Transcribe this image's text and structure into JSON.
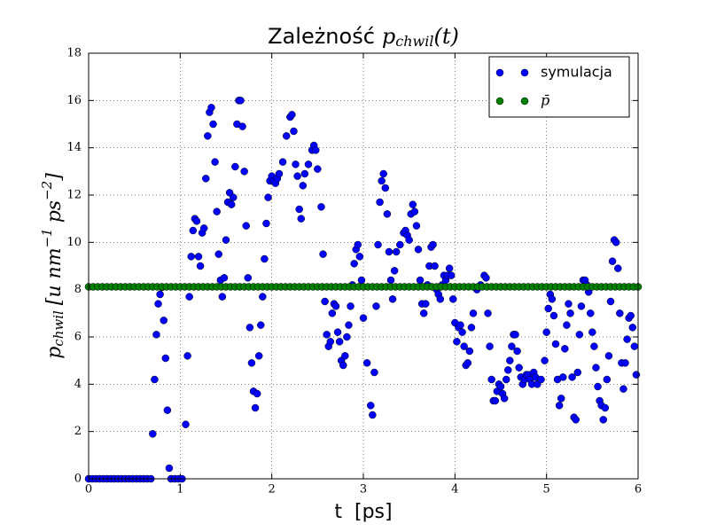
{
  "chart_data": {
    "type": "scatter",
    "title": {
      "text": "Zależność",
      "var": "p",
      "sub": "chwil",
      "arg": "(t)"
    },
    "xlabel": "t  [ps]",
    "ylabel": {
      "var": "p",
      "sub": "chwil",
      "unit1": "[u nm",
      "exp1": "−1",
      "unit2": "ps",
      "exp2": "−2",
      "close": "]"
    },
    "xlim": [
      0,
      6
    ],
    "xticks": [
      0,
      1,
      2,
      3,
      4,
      5,
      6
    ],
    "ylim": [
      0,
      18
    ],
    "yticks": [
      0,
      2,
      4,
      6,
      8,
      10,
      12,
      14,
      16,
      18
    ],
    "grid": true,
    "legend": "upper right",
    "series": [
      {
        "name": "symulacja",
        "color": "#0000ff",
        "x": [
          0,
          0.04,
          0.08,
          0.12,
          0.16,
          0.2,
          0.24,
          0.28,
          0.32,
          0.36,
          0.4,
          0.44,
          0.48,
          0.52,
          0.56,
          0.6,
          0.64,
          0.68,
          0.7,
          0.72,
          0.74,
          0.76,
          0.78,
          0.8,
          0.82,
          0.84,
          0.86,
          0.88,
          0.9,
          0.94,
          0.98,
          1.02,
          1.06,
          1.08,
          1.1,
          1.12,
          1.14,
          1.16,
          1.18,
          1.2,
          1.22,
          1.24,
          1.26,
          1.28,
          1.3,
          1.32,
          1.34,
          1.36,
          1.38,
          1.4,
          1.42,
          1.44,
          1.46,
          1.48,
          1.5,
          1.52,
          1.54,
          1.56,
          1.58,
          1.6,
          1.62,
          1.64,
          1.66,
          1.68,
          1.7,
          1.72,
          1.74,
          1.76,
          1.78,
          1.8,
          1.82,
          1.84,
          1.86,
          1.88,
          1.9,
          1.92,
          1.94,
          1.96,
          1.98,
          2,
          2.02,
          2.04,
          2.06,
          2.08,
          2.12,
          2.16,
          2.2,
          2.22,
          2.24,
          2.26,
          2.28,
          2.3,
          2.32,
          2.34,
          2.36,
          2.4,
          2.44,
          2.46,
          2.48,
          2.5,
          2.54,
          2.56,
          2.58,
          2.6,
          2.62,
          2.64,
          2.66,
          2.68,
          2.7,
          2.72,
          2.74,
          2.76,
          2.78,
          2.8,
          2.82,
          2.84,
          2.86,
          2.88,
          2.9,
          2.92,
          2.94,
          2.96,
          2.98,
          3,
          3.04,
          3.08,
          3.1,
          3.12,
          3.14,
          3.16,
          3.18,
          3.2,
          3.22,
          3.24,
          3.26,
          3.28,
          3.3,
          3.32,
          3.34,
          3.36,
          3.4,
          3.44,
          3.46,
          3.48,
          3.5,
          3.52,
          3.54,
          3.56,
          3.58,
          3.6,
          3.62,
          3.64,
          3.66,
          3.68,
          3.7,
          3.72,
          3.74,
          3.76,
          3.78,
          3.8,
          3.82,
          3.84,
          3.86,
          3.88,
          3.9,
          3.92,
          3.94,
          3.96,
          3.98,
          4,
          4.02,
          4.04,
          4.06,
          4.08,
          4.1,
          4.12,
          4.14,
          4.16,
          4.18,
          4.2,
          4.24,
          4.28,
          4.32,
          4.34,
          4.36,
          4.38,
          4.4,
          4.42,
          4.44,
          4.46,
          4.48,
          4.5,
          4.52,
          4.54,
          4.56,
          4.58,
          4.6,
          4.62,
          4.64,
          4.66,
          4.68,
          4.7,
          4.72,
          4.74,
          4.76,
          4.78,
          4.8,
          4.82,
          4.84,
          4.86,
          4.88,
          4.9,
          4.94,
          4.98,
          5,
          5.02,
          5.04,
          5.06,
          5.08,
          5.1,
          5.12,
          5.14,
          5.16,
          5.18,
          5.2,
          5.22,
          5.24,
          5.26,
          5.28,
          5.3,
          5.32,
          5.34,
          5.36,
          5.38,
          5.4,
          5.42,
          5.44,
          5.46,
          5.48,
          5.5,
          5.52,
          5.54,
          5.56,
          5.58,
          5.6,
          5.62,
          5.64,
          5.66,
          5.68,
          5.7,
          5.72,
          5.74,
          5.76,
          5.78,
          5.8,
          5.82,
          5.84,
          5.86,
          5.88,
          5.9,
          5.92,
          5.94,
          5.96,
          5.98
        ],
        "values": [
          0,
          0,
          0,
          0,
          0,
          0,
          0,
          0,
          0,
          0,
          0,
          0,
          0,
          0,
          0,
          0,
          0,
          0,
          1.9,
          4.2,
          6.1,
          7.4,
          7.8,
          8.1,
          6.7,
          5.1,
          2.9,
          0.45,
          0,
          0,
          0,
          0,
          2.3,
          5.2,
          7.7,
          9.4,
          10.5,
          11.0,
          10.9,
          9.4,
          9.0,
          10.4,
          10.6,
          12.7,
          14.5,
          15.5,
          15.7,
          15.0,
          13.4,
          11.3,
          9.5,
          8.4,
          7.7,
          8.5,
          10.1,
          11.7,
          12.1,
          11.6,
          11.9,
          13.2,
          15.0,
          16.0,
          16.0,
          14.9,
          13.0,
          10.7,
          8.5,
          6.4,
          4.9,
          3.7,
          3.0,
          3.6,
          5.2,
          6.5,
          7.7,
          9.3,
          10.8,
          11.9,
          12.6,
          12.8,
          12.6,
          12.5,
          12.7,
          12.9,
          13.4,
          14.5,
          15.3,
          15.4,
          14.7,
          13.3,
          12.8,
          11.4,
          11.0,
          12.4,
          12.9,
          13.3,
          13.9,
          14.1,
          13.9,
          13.1,
          11.5,
          9.5,
          7.5,
          6.1,
          5.6,
          5.8,
          7.0,
          7.4,
          7.3,
          6.2,
          5.8,
          5.0,
          4.8,
          5.2,
          6.0,
          6.5,
          7.3,
          8.2,
          9.1,
          9.7,
          9.9,
          9.4,
          8.4,
          6.8,
          4.9,
          3.1,
          2.7,
          4.5,
          7.3,
          9.9,
          11.7,
          12.6,
          12.9,
          12.3,
          11.2,
          9.6,
          8.4,
          7.6,
          8.8,
          9.6,
          9.9,
          10.4,
          10.5,
          10.3,
          10.1,
          11.2,
          11.6,
          11.3,
          10.7,
          9.7,
          8.4,
          7.4,
          7.0,
          7.4,
          8.2,
          9.0,
          9.8,
          9.9,
          9.0,
          8.0,
          7.8,
          7.6,
          8.2,
          8.6,
          8.4,
          8.6,
          8.9,
          8.6,
          7.6,
          6.6,
          5.8,
          6.4,
          6.5,
          6.2,
          5.6,
          4.8,
          4.9,
          5.4,
          6.4,
          7.0,
          8.0,
          8.2,
          8.6,
          8.5,
          7.0,
          5.6,
          4.2,
          3.3,
          3.3,
          3.7,
          4.0,
          3.9,
          3.6,
          3.4,
          4.2,
          4.6,
          5.0,
          5.6,
          6.1,
          6.1,
          5.4,
          4.7,
          4.3,
          4.0,
          4.2,
          4.4,
          4.4,
          4.2,
          4.0,
          4.5,
          4.3,
          4.0,
          4.2,
          5.0,
          6.2,
          7.2,
          7.8,
          7.6,
          6.9,
          5.7,
          4.2,
          3.1,
          3.4,
          4.3,
          5.5,
          6.5,
          7.4,
          7.0,
          4.3,
          2.6,
          2.5,
          4.5,
          6.1,
          7.3,
          8.4,
          8.4,
          8.2,
          7.9,
          7.0,
          6.2,
          5.6,
          4.7,
          3.9,
          3.3,
          3.1,
          2.5,
          3.0,
          4.2,
          5.2,
          7.5,
          9.2,
          10.1,
          10.0,
          8.9,
          7.0,
          4.9,
          3.8,
          4.9,
          5.9,
          6.8,
          6.9,
          6.4,
          5.6,
          4.4
        ]
      },
      {
        "name": "p̄",
        "color": "#008000",
        "x": [
          0,
          0.05,
          0.1,
          0.15,
          0.2,
          0.25,
          0.3,
          0.35,
          0.4,
          0.45,
          0.5,
          0.55,
          0.6,
          0.65,
          0.7,
          0.75,
          0.8,
          0.85,
          0.9,
          0.95,
          1,
          1.05,
          1.1,
          1.15,
          1.2,
          1.25,
          1.3,
          1.35,
          1.4,
          1.45,
          1.5,
          1.55,
          1.6,
          1.65,
          1.7,
          1.75,
          1.8,
          1.85,
          1.9,
          1.95,
          2,
          2.05,
          2.1,
          2.15,
          2.2,
          2.25,
          2.3,
          2.35,
          2.4,
          2.45,
          2.5,
          2.55,
          2.6,
          2.65,
          2.7,
          2.75,
          2.8,
          2.85,
          2.9,
          2.95,
          3,
          3.05,
          3.1,
          3.15,
          3.2,
          3.25,
          3.3,
          3.35,
          3.4,
          3.45,
          3.5,
          3.55,
          3.6,
          3.65,
          3.7,
          3.75,
          3.8,
          3.85,
          3.9,
          3.95,
          4,
          4.05,
          4.1,
          4.15,
          4.2,
          4.25,
          4.3,
          4.35,
          4.4,
          4.45,
          4.5,
          4.55,
          4.6,
          4.65,
          4.7,
          4.75,
          4.8,
          4.85,
          4.9,
          4.95,
          5,
          5.05,
          5.1,
          5.15,
          5.2,
          5.25,
          5.3,
          5.35,
          5.4,
          5.45,
          5.5,
          5.55,
          5.6,
          5.65,
          5.7,
          5.75,
          5.8,
          5.85,
          5.9,
          5.95,
          6
        ],
        "values": [
          8.12,
          8.12,
          8.12,
          8.12,
          8.12,
          8.12,
          8.12,
          8.12,
          8.12,
          8.12,
          8.12,
          8.12,
          8.12,
          8.12,
          8.12,
          8.12,
          8.12,
          8.12,
          8.12,
          8.12,
          8.12,
          8.12,
          8.12,
          8.12,
          8.12,
          8.12,
          8.12,
          8.12,
          8.12,
          8.12,
          8.12,
          8.12,
          8.12,
          8.12,
          8.12,
          8.12,
          8.12,
          8.12,
          8.12,
          8.12,
          8.12,
          8.12,
          8.12,
          8.12,
          8.12,
          8.12,
          8.12,
          8.12,
          8.12,
          8.12,
          8.12,
          8.12,
          8.12,
          8.12,
          8.12,
          8.12,
          8.12,
          8.12,
          8.12,
          8.12,
          8.12,
          8.12,
          8.12,
          8.12,
          8.12,
          8.12,
          8.12,
          8.12,
          8.12,
          8.12,
          8.12,
          8.12,
          8.12,
          8.12,
          8.12,
          8.12,
          8.12,
          8.12,
          8.12,
          8.12,
          8.12,
          8.12,
          8.12,
          8.12,
          8.12,
          8.12,
          8.12,
          8.12,
          8.12,
          8.12,
          8.12,
          8.12,
          8.12,
          8.12,
          8.12,
          8.12,
          8.12,
          8.12,
          8.12,
          8.12,
          8.12,
          8.12,
          8.12,
          8.12,
          8.12,
          8.12,
          8.12,
          8.12,
          8.12,
          8.12,
          8.12,
          8.12,
          8.12,
          8.12,
          8.12,
          8.12,
          8.12,
          8.12,
          8.12,
          8.12,
          8.12
        ]
      }
    ]
  }
}
